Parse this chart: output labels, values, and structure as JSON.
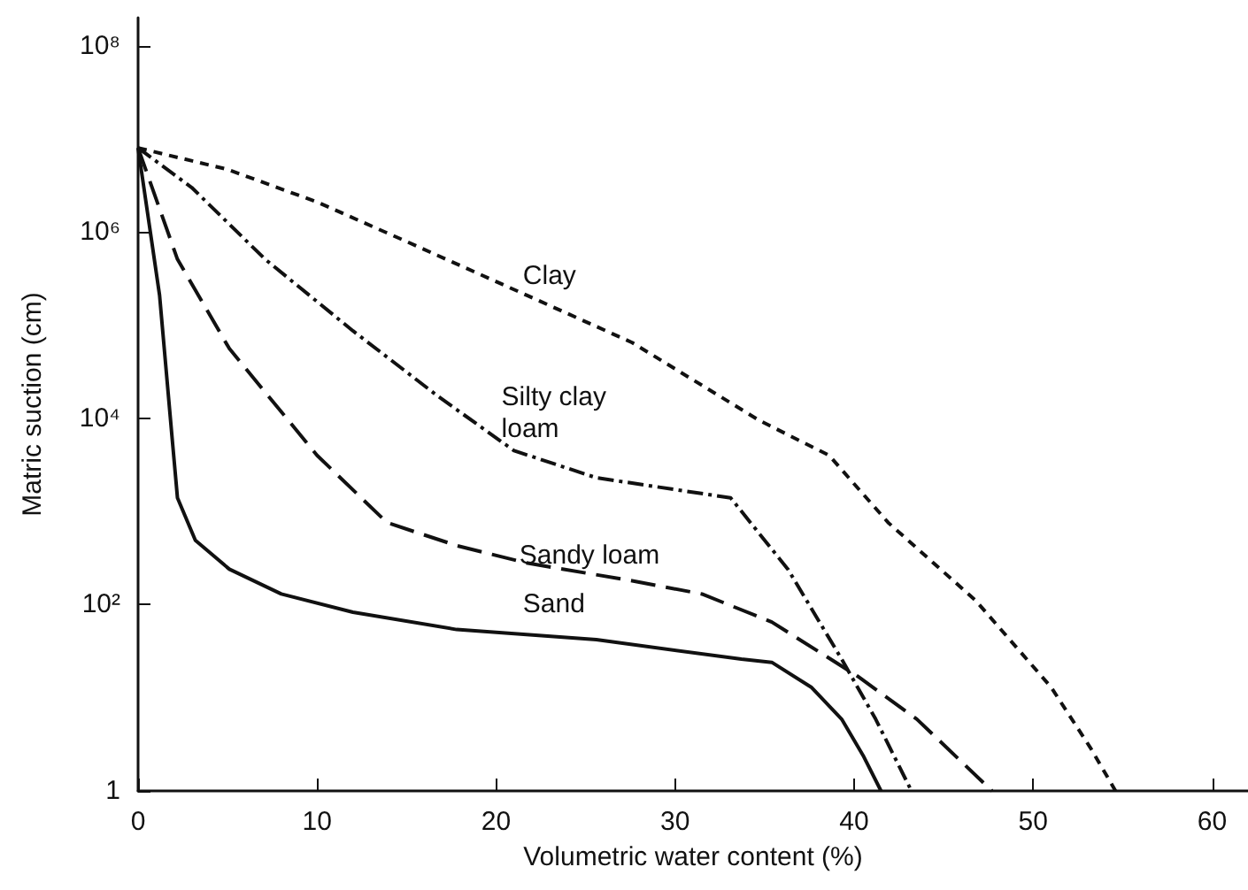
{
  "chart_data": {
    "type": "line",
    "xlabel": "Volumetric water content (%)",
    "ylabel": "Matric suction (cm)",
    "xlim": [
      0,
      62
    ],
    "xticks": [
      0,
      10,
      20,
      30,
      40,
      50,
      60
    ],
    "ylim": [
      1,
      200000000
    ],
    "yticks": [
      {
        "value": 1,
        "label": "1"
      },
      {
        "value": 100,
        "label": "10²"
      },
      {
        "value": 10000,
        "label": "10⁴"
      },
      {
        "value": 1000000,
        "label": "10⁶"
      },
      {
        "value": 100000000,
        "label": "10⁸"
      }
    ],
    "log": "y",
    "grid": false,
    "legend": false,
    "marker": "none",
    "series": [
      {
        "name": "Clay",
        "color": "#111111",
        "line_style": "dotted",
        "x": [
          0,
          5,
          10,
          15,
          21.7,
          27.6,
          34.7,
          38.6,
          41.9,
          46.8,
          51,
          53.2,
          54.6
        ],
        "values": [
          8000000,
          4700000,
          2100000,
          790000,
          210000,
          65000,
          9500,
          4000,
          760,
          110,
          13,
          2.9,
          1
        ]
      },
      {
        "name": "Silty clay loam",
        "color": "#111111",
        "line_style": "dashdot",
        "x": [
          0,
          3,
          7.1,
          12,
          16.8,
          21,
          25.6,
          33.1,
          36.3,
          39.3,
          41.2,
          43.2
        ],
        "values": [
          8000000,
          3000000,
          510000,
          87000,
          17000,
          4500,
          2300,
          1400,
          240,
          26,
          5.9,
          1
        ]
      },
      {
        "name": "Sandy loam",
        "color": "#111111",
        "line_style": "dashed",
        "x": [
          0,
          2.2,
          5.1,
          10,
          13.9,
          17.8,
          21.7,
          27.6,
          31.5,
          35.4,
          40.2,
          43.5,
          47.7
        ],
        "values": [
          8000000,
          510000,
          56000,
          4000,
          760,
          430,
          280,
          180,
          130,
          65,
          17,
          5.9,
          1
        ]
      },
      {
        "name": "Sand",
        "color": "#111111",
        "line_style": "solid",
        "x": [
          0,
          1.2,
          1.9,
          2.2,
          3.2,
          5.1,
          8,
          12,
          17.8,
          25.6,
          33.7,
          35.4,
          37.6,
          39.3,
          40.5,
          41.5
        ],
        "values": [
          8000000,
          210000,
          6200,
          1400,
          490,
          240,
          130,
          83,
          54,
          42,
          26,
          24,
          13,
          5.9,
          2.4,
          1
        ]
      }
    ]
  }
}
